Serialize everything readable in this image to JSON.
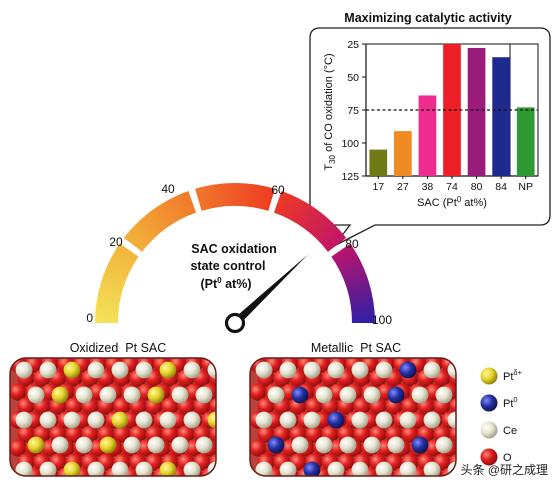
{
  "inset": {
    "title": "Maximizing catalytic activity",
    "ylabel_main": "T",
    "ylabel_sub": "30",
    "ylabel_rest": " of CO oxidation (°C)",
    "xlabel_main": "SAC (Pt",
    "xlabel_sup": "0",
    "xlabel_rest": " at%)"
  },
  "chart_data": {
    "type": "bar",
    "title": "Maximizing catalytic activity",
    "categories": [
      "17",
      "27",
      "38",
      "74",
      "80",
      "84",
      "NP"
    ],
    "values": [
      105,
      91,
      64,
      25,
      28,
      35,
      73
    ],
    "colors": [
      "#6f7a17",
      "#f08a22",
      "#ee2b8f",
      "#ee2027",
      "#9b1b7a",
      "#1f2a8f",
      "#2f9a34"
    ],
    "ylim": [
      125,
      25
    ],
    "y_inverted": true,
    "yticks": [
      "25",
      "50",
      "75",
      "100",
      "125"
    ],
    "reference_line": 75,
    "xlabel": "SAC (Pt0 at%)",
    "ylabel": "T30 of CO oxidation (°C)"
  },
  "gauge": {
    "ticks": [
      "0",
      "20",
      "40",
      "60",
      "80",
      "100"
    ],
    "center_line1": "SAC oxidation",
    "center_line2": "state control",
    "center_line3_pre": "(Pt",
    "center_line3_sup": "0",
    "center_line3_post": " at%)",
    "needle_value": 76
  },
  "panels": {
    "left_label": "Oxidized  Pt SAC",
    "right_label": "Metallic  Pt SAC"
  },
  "legend": [
    {
      "label": "Pt",
      "sup": "δ+",
      "color": "#e6d42a"
    },
    {
      "label": "Pt",
      "sup": "0",
      "color": "#2430a0"
    },
    {
      "label": "Ce",
      "sup": "",
      "color": "#e6e3cf"
    },
    {
      "label": "O",
      "sup": "",
      "color": "#e02020"
    }
  ],
  "watermark": "头条 @研之成理"
}
